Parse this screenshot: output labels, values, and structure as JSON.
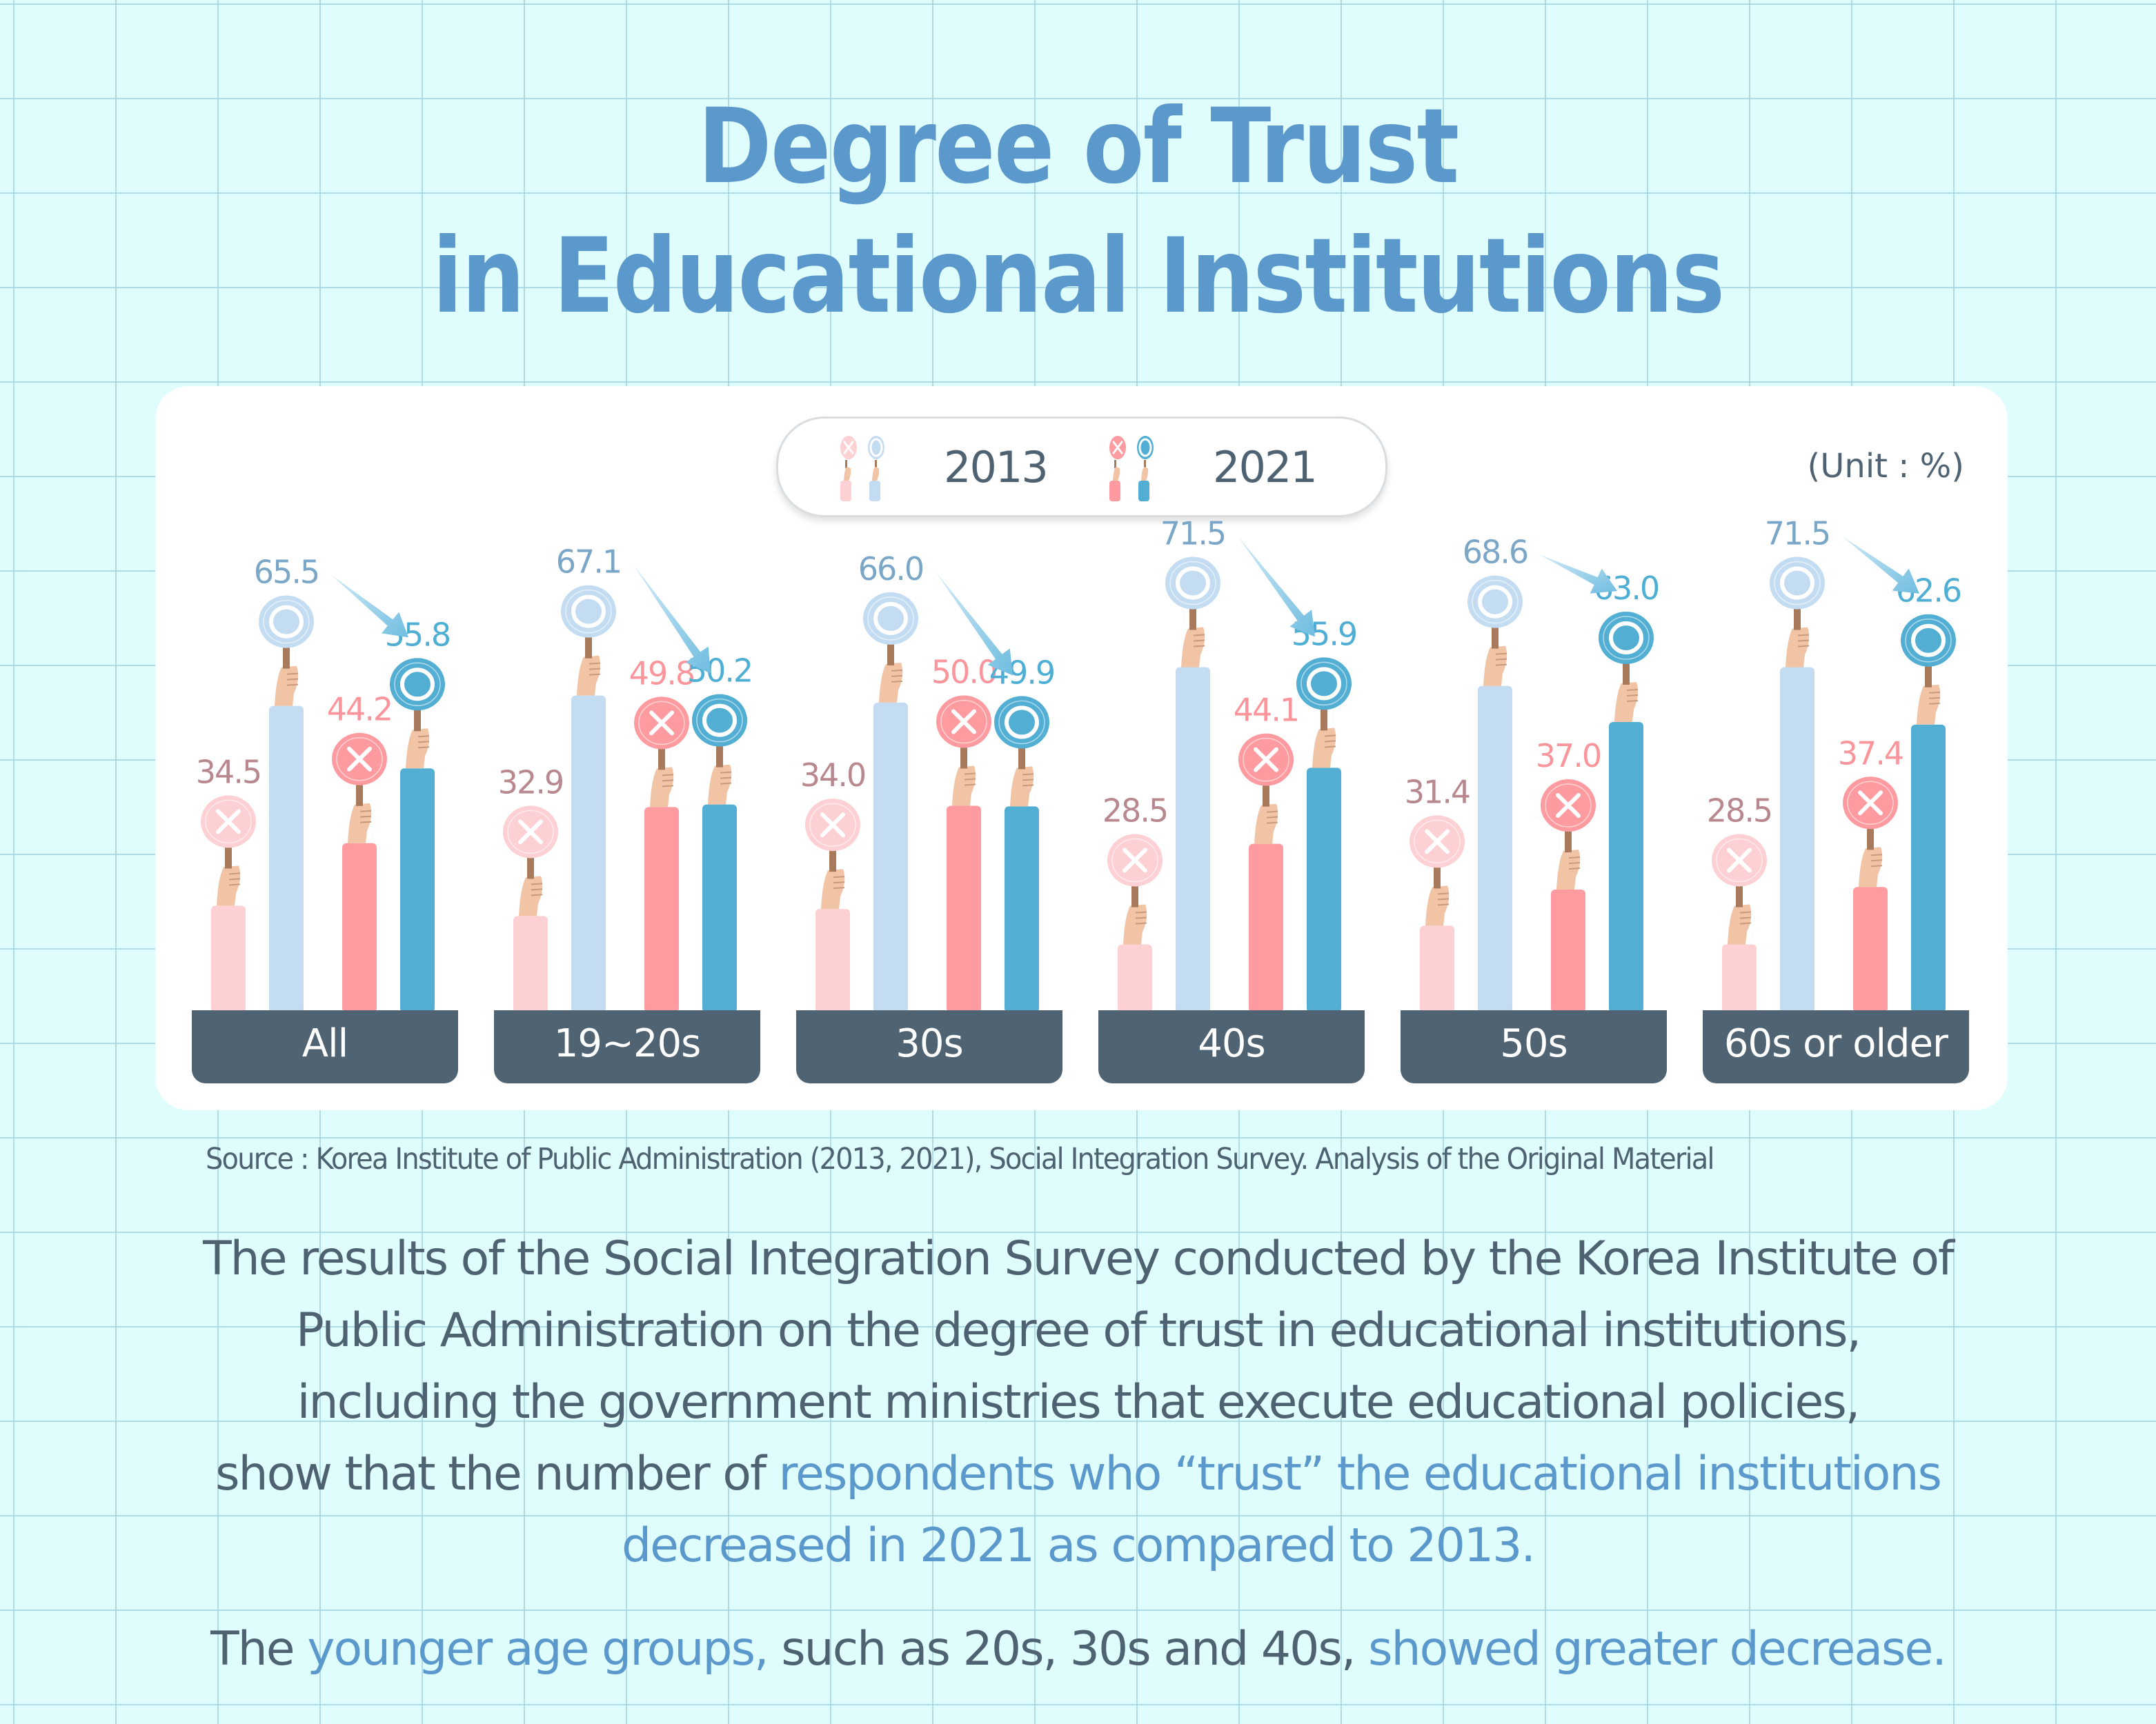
{
  "title": {
    "line1": "Degree of Trust",
    "line2": "in Educational Institutions"
  },
  "legend": {
    "items": [
      {
        "label": "2013",
        "distrust_color": "#fdd0d4",
        "trust_color": "#c4dcf2"
      },
      {
        "label": "2021",
        "distrust_color": "#fe9ba1",
        "trust_color": "#52aed3"
      }
    ]
  },
  "unit_label": "(Unit : %)",
  "colors": {
    "distrust_2013": "#fdd0d4",
    "trust_2013": "#c4dcf2",
    "distrust_2021": "#fe9ba1",
    "trust_2021": "#52aed3",
    "label_distrust_2013": "#b9888f",
    "label_trust_2013": "#7aa6c8",
    "label_distrust_2021": "#f9959b",
    "label_trust_2021": "#4eaed3",
    "category_bg": "#4f6372",
    "title": "#5b98cc",
    "text": "#4e6272",
    "skin": "#f2c4a6",
    "stick": "#a77a5c"
  },
  "chart_data": {
    "type": "bar",
    "title": "Degree of Trust in Educational Institutions",
    "xlabel": "",
    "ylabel": "",
    "unit": "%",
    "grid": false,
    "legend_position": "top-center",
    "categories": [
      "All",
      "19~20s",
      "30s",
      "40s",
      "50s",
      "60s or older"
    ],
    "series": [
      {
        "name": "2013 Distrust (X)",
        "year": "2013",
        "kind": "distrust",
        "values": [
          34.5,
          32.9,
          34.0,
          28.5,
          31.4,
          28.5
        ]
      },
      {
        "name": "2013 Trust (O)",
        "year": "2013",
        "kind": "trust",
        "values": [
          65.5,
          67.1,
          66.0,
          71.5,
          68.6,
          71.5
        ]
      },
      {
        "name": "2021 Distrust (X)",
        "year": "2021",
        "kind": "distrust",
        "values": [
          44.2,
          49.8,
          50.0,
          44.1,
          37.0,
          37.4
        ]
      },
      {
        "name": "2021 Trust (O)",
        "year": "2021",
        "kind": "trust",
        "values": [
          55.8,
          50.2,
          49.9,
          55.9,
          63.0,
          62.6
        ]
      }
    ],
    "value_labels": [
      [
        "34.5",
        "32.9",
        "34.0",
        "28.5",
        "31.4",
        "28.5"
      ],
      [
        "65.5",
        "67.1",
        "66.0",
        "71.5",
        "68.6",
        "71.5"
      ],
      [
        "44.2",
        "49.8",
        "50.0",
        "44.1",
        "37.0",
        "37.4"
      ],
      [
        "55.8",
        "50.2",
        "49.9",
        "55.9",
        "63.0",
        "62.6"
      ]
    ],
    "annotations": "Arrow from 2013 trust to 2021 trust in each group indicates decrease",
    "ylim": [
      0,
      80
    ]
  },
  "source": "Source : Korea Institute of Public Administration (2013, 2021), Social Integration Survey. Analysis of the Original Material",
  "body": {
    "p1": {
      "line1": "The results of the Social Integration Survey conducted by the Korea Institute of",
      "line2": "Public Administration on the degree of trust in educational institutions,",
      "line3": "including the government ministries that execute educational policies,",
      "line4_plain": "show that the number of ",
      "line4_highlight": "respondents who “trust” the educational institutions",
      "line5_highlight": "decreased in 2021 as compared to 2013."
    },
    "p2": {
      "seg1": "The ",
      "seg2_highlight": "younger age groups,",
      "seg3": " such as 20s, 30s and 40s, ",
      "seg4_highlight": "showed greater decrease."
    }
  }
}
